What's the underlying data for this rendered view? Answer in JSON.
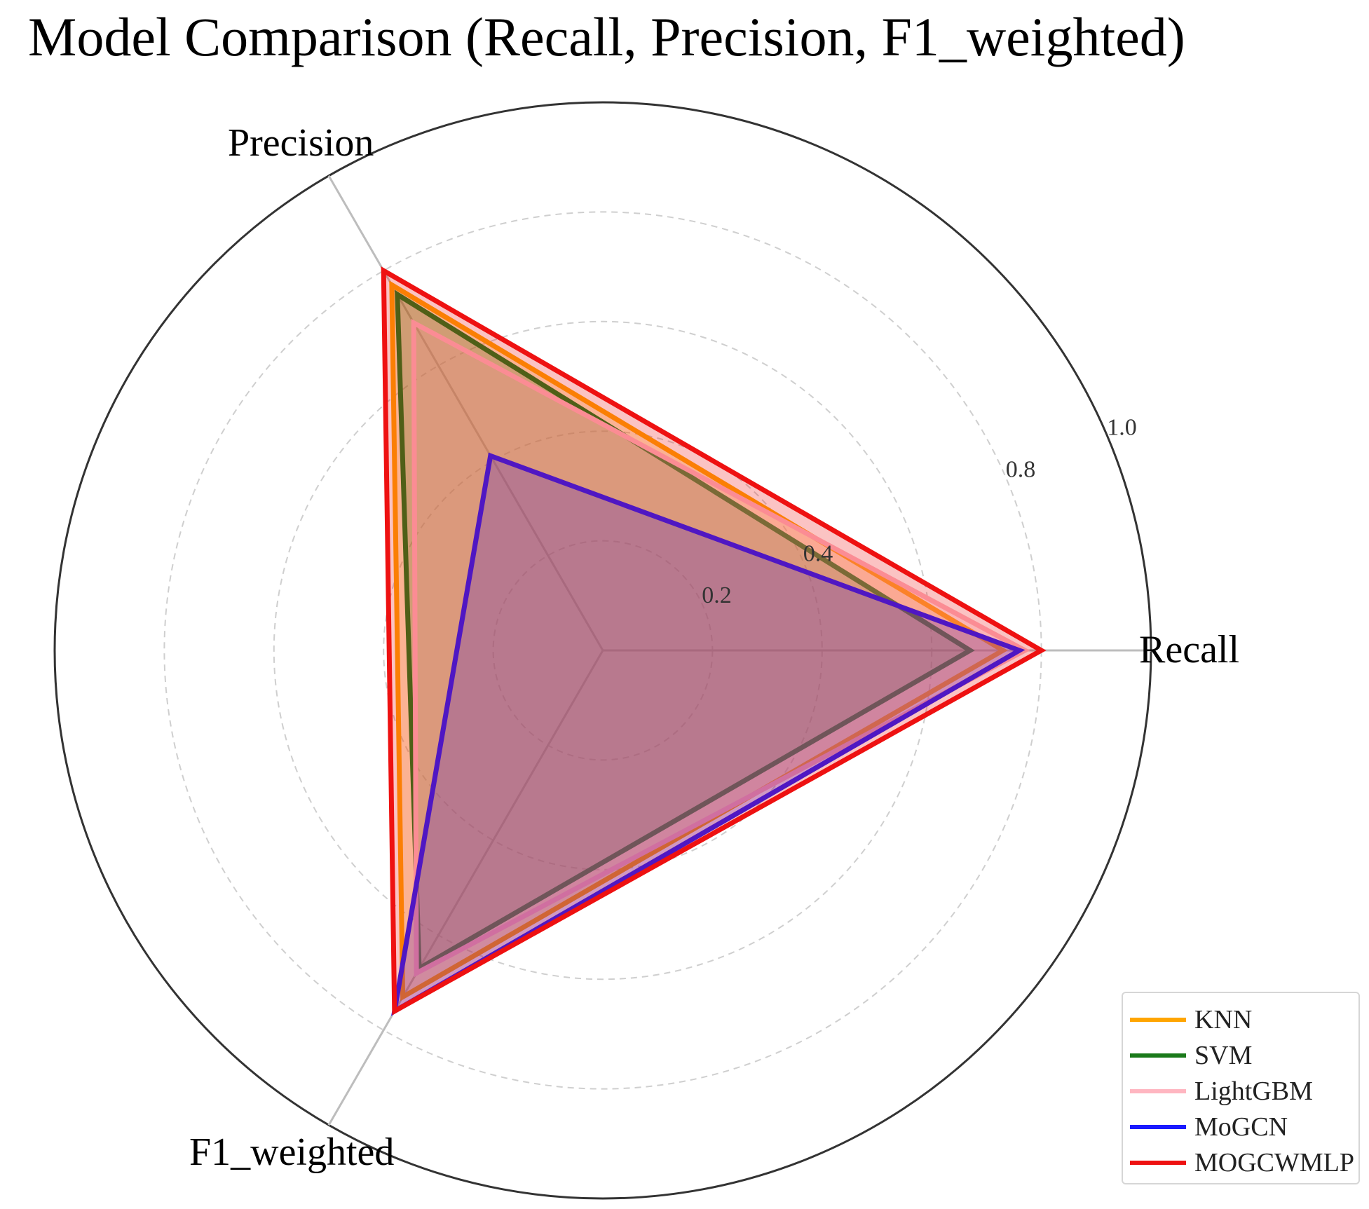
{
  "chart_data": {
    "type": "radar",
    "title": "Model Comparison (Recall, Precision, F1_weighted)",
    "axes": [
      "Recall",
      "Precision",
      "F1_weighted"
    ],
    "rlim": [
      0,
      1.0
    ],
    "rticks": [
      0.2,
      0.4,
      0.8,
      1.0
    ],
    "grid": true,
    "legend_position": "bottom-right",
    "series": [
      {
        "name": "KNN",
        "color": "#ffa500",
        "values": [
          0.73,
          0.77,
          0.73
        ]
      },
      {
        "name": "SVM",
        "color": "#1a7a1a",
        "values": [
          0.67,
          0.75,
          0.67
        ]
      },
      {
        "name": "LightGBM",
        "color": "#ffb6c1",
        "values": [
          0.77,
          0.69,
          0.68
        ]
      },
      {
        "name": "MoGCN",
        "color": "#1a1aff",
        "values": [
          0.76,
          0.41,
          0.76
        ]
      },
      {
        "name": "MOGCWMLP",
        "color": "#ee1111",
        "values": [
          0.8,
          0.8,
          0.76
        ]
      }
    ]
  }
}
